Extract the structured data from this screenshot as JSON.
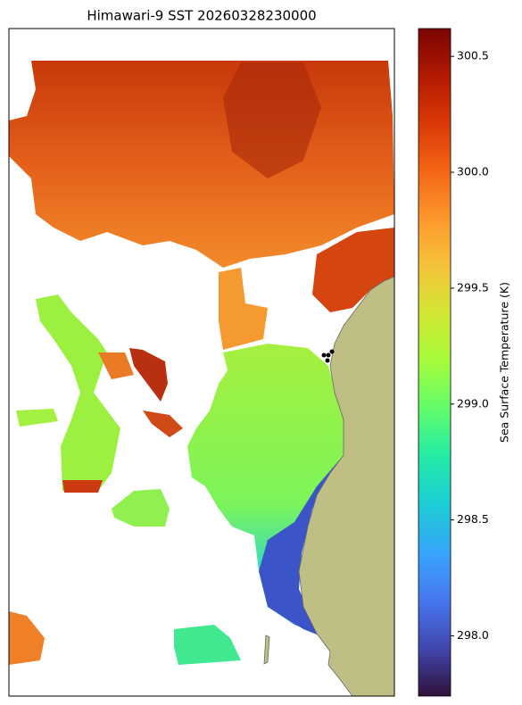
{
  "title": "Himawari-9 SST 20260328230000",
  "colorbar": {
    "label": "Sea Surface Temperature (K)",
    "clim": [
      297.74,
      300.62
    ],
    "ticks": [
      {
        "value": 298,
        "label": "298.0"
      },
      {
        "value": 298.5,
        "label": "298.5"
      },
      {
        "value": 299,
        "label": "299.0"
      },
      {
        "value": 299.5,
        "label": "299.5"
      },
      {
        "value": 300,
        "label": "300.0"
      },
      {
        "value": 300.5,
        "label": "300.5"
      }
    ]
  }
}
